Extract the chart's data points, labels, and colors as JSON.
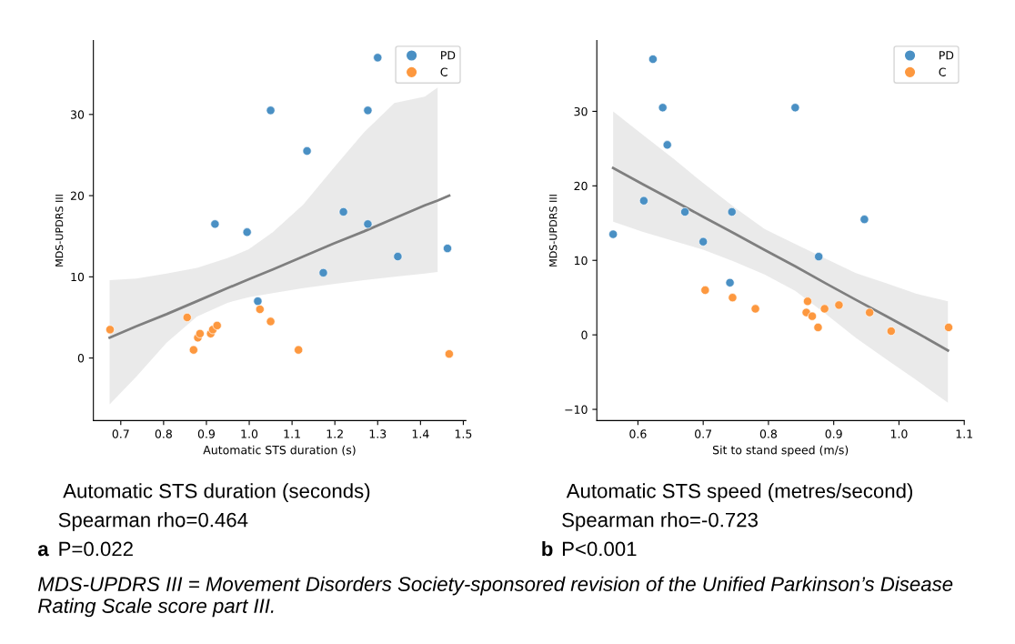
{
  "chart_data": [
    {
      "type": "scatter",
      "xlabel": "Automatic STS duration (s)",
      "ylabel": "MDS-UPDRS III",
      "xlim": [
        0.636,
        1.506
      ],
      "ylim": [
        -7.7,
        39.1
      ],
      "xticks": [
        0.7,
        0.8,
        0.9,
        {
          "value": 1,
          "label": "1.0"
        },
        1.1,
        1.2,
        1.3,
        1.4,
        1.5
      ],
      "yticks": [
        0,
        10,
        20,
        30
      ],
      "grid": false,
      "legend": "top right",
      "marker": "circle",
      "series": [
        {
          "name": "PD",
          "color": "#4a90c4",
          "x": [
            1.3,
            1.05,
            1.277,
            1.135,
            0.92,
            0.995,
            1.22,
            1.277,
            1.173,
            1.347,
            1.463,
            1.02
          ],
          "values": [
            37,
            30.5,
            30.5,
            25.5,
            16.5,
            15.5,
            18,
            16.5,
            10.5,
            12.5,
            13.5,
            7
          ]
        },
        {
          "name": "C",
          "color": "#fd983f",
          "x": [
            0.675,
            0.855,
            0.87,
            0.88,
            0.885,
            0.91,
            0.915,
            0.925,
            1.025,
            1.05,
            1.115,
            1.467
          ],
          "values": [
            3.5,
            5,
            1,
            2.5,
            3,
            3,
            3.5,
            4,
            6,
            4.5,
            1,
            0.5
          ]
        },
        {
          "type": "line",
          "color": "#7f7f7f",
          "line_style": "solid",
          "marker": "none",
          "x": [
            0.674,
            0.736,
            0.807,
            0.878,
            0.949,
            0.999,
            1.055,
            1.126,
            1.197,
            1.268,
            1.339,
            1.41,
            1.44,
            1.467
          ],
          "values": [
            2.5,
            3.9,
            5.4,
            7.0,
            8.6,
            9.7,
            10.9,
            12.5,
            14.1,
            15.6,
            17.2,
            18.8,
            19.4,
            20.0
          ],
          "lower": [
            -5.7,
            -2.3,
            1.9,
            5.1,
            6.8,
            7.5,
            8.0,
            8.6,
            9.1,
            9.6,
            10.0,
            10.4,
            10.6,
            null
          ],
          "upper": [
            9.6,
            9.8,
            10.4,
            11.1,
            12.3,
            13.4,
            15.5,
            18.9,
            23.4,
            27.8,
            31.4,
            32.2,
            33.3,
            null
          ]
        }
      ],
      "annotations": [
        "Automatic STS duration (seconds)",
        "Spearman rho=0.464",
        "a",
        "P=0.022"
      ]
    },
    {
      "type": "scatter",
      "xlabel": "Sit to stand speed (m/s)",
      "ylabel": "MDS-UPDRS III",
      "xlim": [
        0.537,
        1.1
      ],
      "ylim": [
        -11.5,
        39.5
      ],
      "xticks": [
        0.6,
        0.7,
        0.8,
        0.9,
        {
          "value": 1,
          "label": "1.0"
        },
        1.1
      ],
      "yticks": [
        {
          "value": -10,
          "label": "−10"
        },
        0,
        10,
        20,
        30
      ],
      "grid": false,
      "legend": "top right",
      "marker": "circle",
      "series": [
        {
          "name": "PD",
          "color": "#4a90c4",
          "x": [
            0.623,
            0.638,
            0.645,
            0.841,
            0.609,
            0.672,
            0.744,
            0.947,
            0.562,
            0.7,
            0.877,
            0.741
          ],
          "values": [
            37,
            30.5,
            25.5,
            30.5,
            18,
            16.5,
            16.5,
            15.5,
            13.5,
            12.5,
            10.5,
            7
          ]
        },
        {
          "name": "C",
          "color": "#fd983f",
          "x": [
            0.703,
            0.745,
            0.78,
            0.86,
            0.858,
            0.867,
            0.876,
            0.886,
            0.908,
            0.955,
            0.988,
            1.076
          ],
          "values": [
            6,
            5,
            3.5,
            4.5,
            3,
            2.5,
            1,
            3.5,
            4,
            3,
            0.5,
            1
          ]
        },
        {
          "type": "line",
          "color": "#7f7f7f",
          "line_style": "solid",
          "marker": "none",
          "x": [
            0.562,
            0.608,
            0.655,
            0.701,
            0.748,
            0.794,
            0.841,
            0.888,
            0.934,
            0.981,
            1.027,
            1.075
          ],
          "values": [
            22.4,
            20.2,
            18.0,
            15.8,
            13.6,
            11.4,
            9.2,
            6.9,
            4.7,
            2.5,
            0.3,
            -2.1
          ],
          "lower": [
            15.2,
            13.8,
            12.6,
            11.4,
            9.8,
            8.1,
            5.9,
            2.8,
            -0.4,
            -3.3,
            -6.1,
            -9.1
          ],
          "upper": [
            30.0,
            26.8,
            23.6,
            20.3,
            17.1,
            14.2,
            12.2,
            10.2,
            8.3,
            6.9,
            5.5,
            4.5
          ]
        }
      ],
      "annotations": [
        "Automatic STS speed (metres/second)",
        "Spearman rho=-0.723",
        "b",
        "P<0.001",
        "MDS-UPDRS III = Movement Disorders Society-sponsored revision of the Unified Parkinson’s Disease Rating Scale score part III."
      ]
    }
  ]
}
